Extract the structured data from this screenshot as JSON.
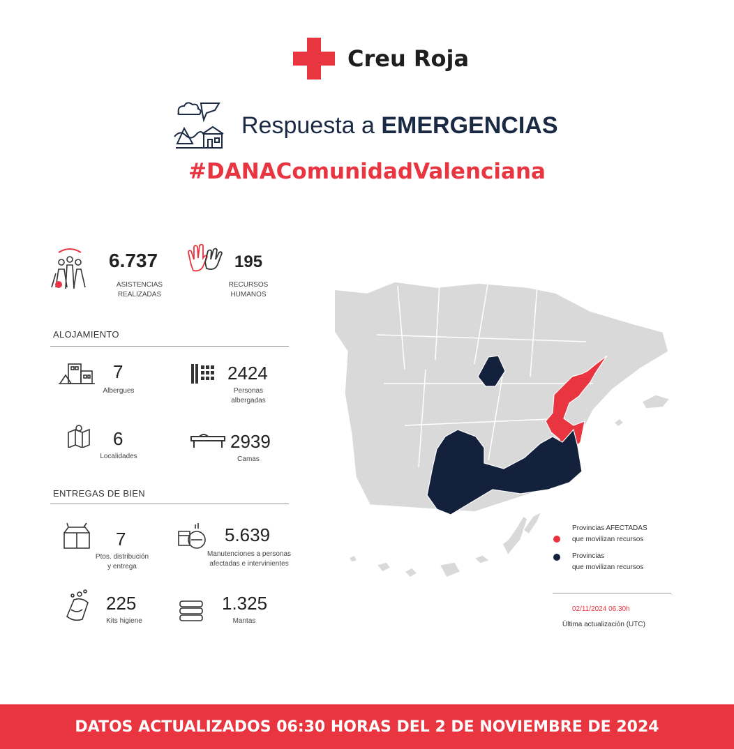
{
  "brand": {
    "name": "Creu Roja"
  },
  "header": {
    "title_prefix": "Respuesta a ",
    "title_bold": "EMERGENCIAS",
    "hashtag": "#DANAComunidadValenciana"
  },
  "stats": {
    "asistencias": {
      "value": "6.737",
      "label_1": "ASISTENCIAS",
      "label_2": "REALIZADAS"
    },
    "recursos": {
      "value": "195",
      "label_1": "RECURSOS",
      "label_2": "HUMANOS"
    }
  },
  "alojamiento": {
    "heading": "ALOJAMIENTO",
    "albergues": {
      "value": "7",
      "label": "Albergues"
    },
    "personas": {
      "value": "2424",
      "label_1": "Personas",
      "label_2": "albergadas"
    },
    "localidades": {
      "value": "6",
      "label": "Localidades"
    },
    "camas": {
      "value": "2939",
      "label": "Camas"
    }
  },
  "entregas": {
    "heading": "ENTREGAS DE BIEN",
    "puntos": {
      "value": "7",
      "label_1": "Ptos. distribución",
      "label_2": "y entrega"
    },
    "manutenciones": {
      "value": "5.639",
      "label_1": "Manutenciones a personas",
      "label_2": "afectadas e intervinientes"
    },
    "kits": {
      "value": "225",
      "label": "Kits higiene"
    },
    "mantas": {
      "value": "1.325",
      "label": "Mantas"
    }
  },
  "legend": {
    "affected_1": "Provincias AFECTADAS",
    "affected_2": "que movilizan recursos",
    "mobilize_1": "Provincias",
    "mobilize_2": "que movilizan recursos",
    "date": "02/11/2024 06.30h",
    "update_label": "Última actualización (UTC)"
  },
  "colors": {
    "accent": "#e8353f",
    "navy": "#13213d",
    "map_grey": "#d9d9d9"
  },
  "footer": {
    "text": "DATOS ACTUALIZADOS 06:30 HORAS DEL 2 DE NOVIEMBRE DE 2024"
  }
}
